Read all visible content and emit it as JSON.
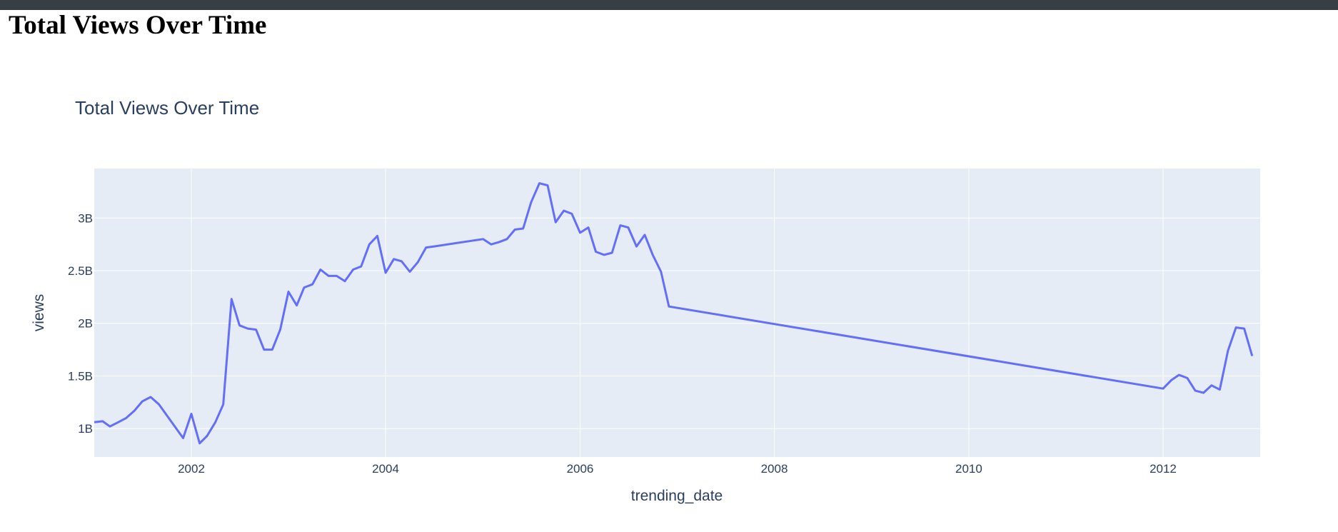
{
  "page": {
    "heading": "Total Views Over Time"
  },
  "chart_data": {
    "type": "line",
    "title": "Total Views Over Time",
    "xlabel": "trending_date",
    "ylabel": "views",
    "x_tick_labels": [
      "2002",
      "2004",
      "2006",
      "2008",
      "2010",
      "2012"
    ],
    "y_tick_labels": [
      "1B",
      "1.5B",
      "2B",
      "2.5B",
      "3B"
    ],
    "y_tick_values": [
      1000000000,
      1500000000,
      2000000000,
      2500000000,
      3000000000
    ],
    "xlim": [
      "2001-01-01",
      "2012-12-31"
    ],
    "ylim": [
      730000000,
      3470000000
    ],
    "grid": true,
    "legend": "none",
    "colors": {
      "line": "#636efa",
      "plot_background": "#e5ecf6",
      "grid": "#ffffff",
      "text": "#2a3f5f"
    },
    "series": [
      {
        "x": [
          "2001-01-01",
          "2001-02-01",
          "2001-03-01",
          "2001-04-01",
          "2001-05-01",
          "2001-06-01",
          "2001-07-01",
          "2001-08-01",
          "2001-09-01",
          "2001-12-01",
          "2002-01-01",
          "2002-02-01",
          "2002-03-01",
          "2002-04-01",
          "2002-05-01",
          "2002-06-01",
          "2002-07-01",
          "2002-08-01",
          "2002-09-01",
          "2002-10-01",
          "2002-11-01",
          "2002-12-01",
          "2003-01-01",
          "2003-02-01",
          "2003-03-01",
          "2003-04-01",
          "2003-05-01",
          "2003-06-01",
          "2003-07-01",
          "2003-08-01",
          "2003-09-01",
          "2003-10-01",
          "2003-11-01",
          "2003-12-01",
          "2004-01-01",
          "2004-02-01",
          "2004-03-01",
          "2004-04-01",
          "2004-05-01",
          "2004-06-01",
          "2004-07-01",
          "2005-01-01",
          "2005-02-01",
          "2005-03-01",
          "2005-04-01",
          "2005-05-01",
          "2005-06-01",
          "2005-07-01",
          "2005-08-01",
          "2005-09-01",
          "2005-10-01",
          "2005-11-01",
          "2005-12-01",
          "2006-01-01",
          "2006-02-01",
          "2006-03-01",
          "2006-04-01",
          "2006-05-01",
          "2006-06-01",
          "2006-07-01",
          "2006-08-01",
          "2006-09-01",
          "2006-10-01",
          "2006-11-01",
          "2006-12-01",
          "2012-01-01",
          "2012-02-01",
          "2012-03-01",
          "2012-04-01",
          "2012-05-01",
          "2012-06-01",
          "2012-07-01",
          "2012-08-01",
          "2012-09-01",
          "2012-10-01",
          "2012-11-01",
          "2012-12-01"
        ],
        "y": [
          1060000000,
          1070000000,
          1020000000,
          1060000000,
          1100000000,
          1170000000,
          1260000000,
          1300000000,
          1230000000,
          910000000,
          1140000000,
          860000000,
          930000000,
          1060000000,
          1230000000,
          2230000000,
          1980000000,
          1950000000,
          1940000000,
          1750000000,
          1750000000,
          1940000000,
          2300000000,
          2170000000,
          2340000000,
          2370000000,
          2510000000,
          2450000000,
          2450000000,
          2400000000,
          2510000000,
          2540000000,
          2750000000,
          2830000000,
          2480000000,
          2610000000,
          2590000000,
          2490000000,
          2580000000,
          2720000000,
          2730000000,
          2800000000,
          2750000000,
          2770000000,
          2800000000,
          2890000000,
          2900000000,
          3150000000,
          3330000000,
          3310000000,
          2960000000,
          3070000000,
          3040000000,
          2860000000,
          2910000000,
          2680000000,
          2650000000,
          2670000000,
          2930000000,
          2910000000,
          2730000000,
          2840000000,
          2650000000,
          2490000000,
          2160000000,
          1380000000,
          1460000000,
          1510000000,
          1480000000,
          1360000000,
          1340000000,
          1410000000,
          1370000000,
          1740000000,
          1960000000,
          1950000000,
          1690000000
        ]
      }
    ]
  }
}
